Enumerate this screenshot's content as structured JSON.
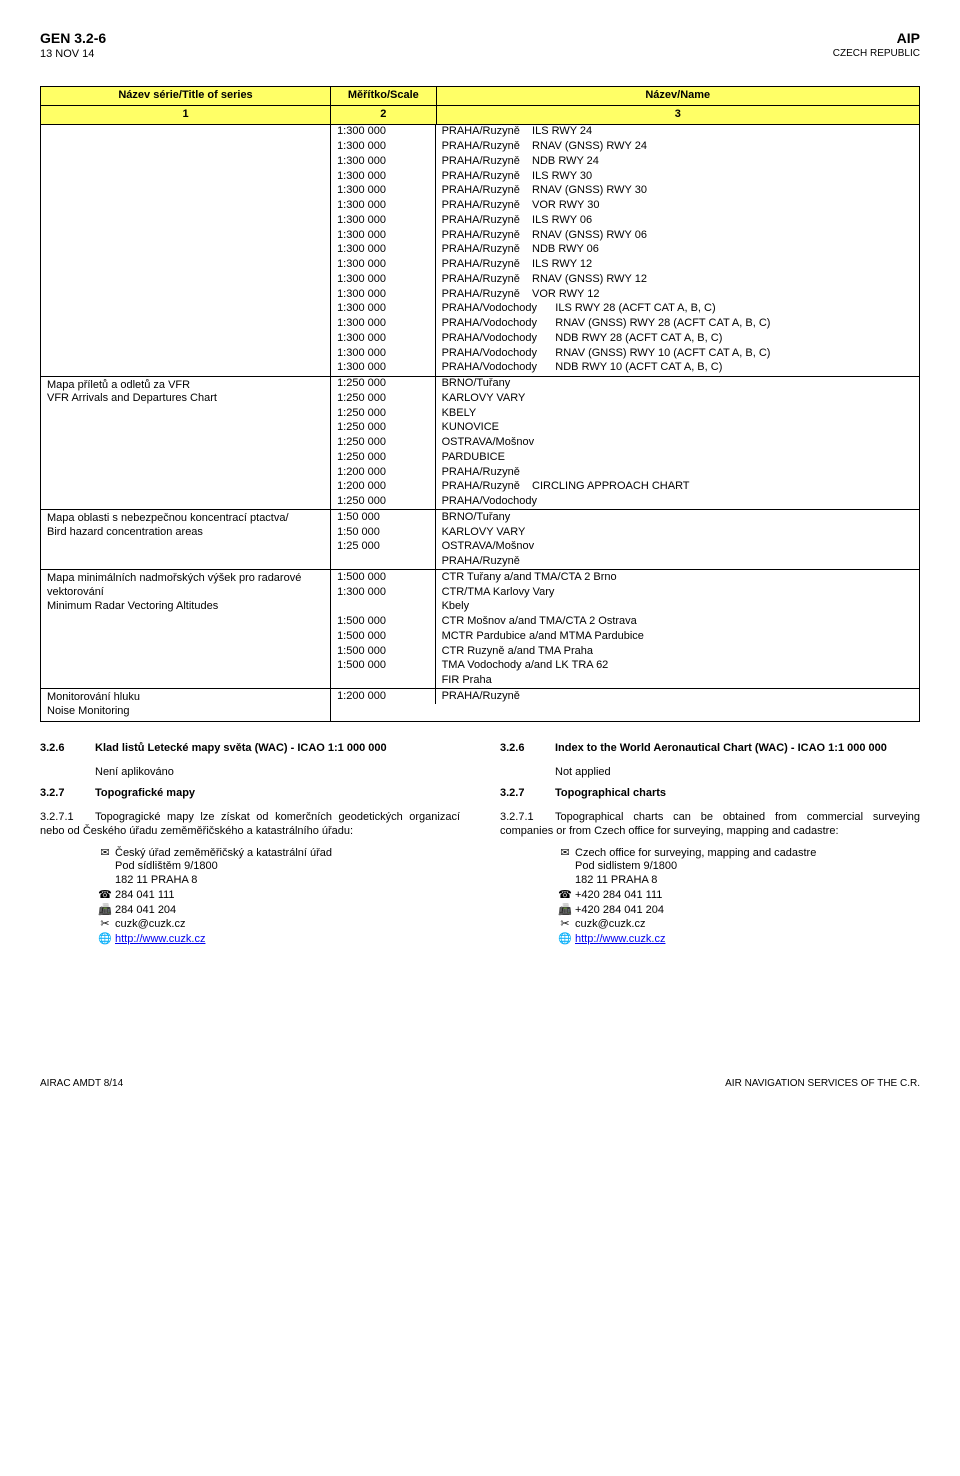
{
  "header": {
    "doc_id": "GEN 3.2-6",
    "doc_date": "13 NOV 14",
    "aip": "AIP",
    "country": "CZECH REPUBLIC"
  },
  "table": {
    "headers": {
      "c1": "Název série/Title of series",
      "c2": "Měřítko/Scale",
      "c3": "Název/Name",
      "n1": "1",
      "n2": "2",
      "n3": "3"
    },
    "header_bg": "#ffff66",
    "groups": [
      {
        "title_lines": [],
        "rows": [
          {
            "scale": "1:300 000",
            "name": "PRAHA/Ruzyně    ILS RWY 24"
          },
          {
            "scale": "1:300 000",
            "name": "PRAHA/Ruzyně    RNAV (GNSS) RWY 24"
          },
          {
            "scale": "1:300 000",
            "name": "PRAHA/Ruzyně    NDB RWY 24"
          },
          {
            "scale": "1:300 000",
            "name": "PRAHA/Ruzyně    ILS RWY 30"
          },
          {
            "scale": "1:300 000",
            "name": "PRAHA/Ruzyně    RNAV (GNSS) RWY 30"
          },
          {
            "scale": "1:300 000",
            "name": "PRAHA/Ruzyně    VOR RWY 30"
          },
          {
            "scale": "1:300 000",
            "name": "PRAHA/Ruzyně    ILS RWY 06"
          },
          {
            "scale": "1:300 000",
            "name": "PRAHA/Ruzyně    RNAV (GNSS) RWY 06"
          },
          {
            "scale": "1:300 000",
            "name": "PRAHA/Ruzyně    NDB RWY 06"
          },
          {
            "scale": "1:300 000",
            "name": "PRAHA/Ruzyně    ILS RWY 12"
          },
          {
            "scale": "1:300 000",
            "name": "PRAHA/Ruzyně    RNAV (GNSS) RWY 12"
          },
          {
            "scale": "1:300 000",
            "name": "PRAHA/Ruzyně    VOR RWY 12"
          },
          {
            "scale": "1:300 000",
            "name": "PRAHA/Vodochody      ILS RWY 28 (ACFT CAT A, B, C)"
          },
          {
            "scale": "1:300 000",
            "name": "PRAHA/Vodochody      RNAV (GNSS) RWY 28 (ACFT CAT A, B, C)"
          },
          {
            "scale": "1:300 000",
            "name": "PRAHA/Vodochody      NDB RWY 28 (ACFT CAT A, B, C)"
          },
          {
            "scale": "1:300 000",
            "name": "PRAHA/Vodochody      RNAV (GNSS) RWY 10 (ACFT CAT A, B, C)"
          },
          {
            "scale": "1:300 000",
            "name": "PRAHA/Vodochody      NDB RWY 10 (ACFT CAT A, B, C)"
          }
        ]
      },
      {
        "title_lines": [
          "Mapa příletů a odletů za VFR",
          "VFR Arrivals and Departures Chart"
        ],
        "rows": [
          {
            "scale": "1:250 000",
            "name": "BRNO/Tuřany"
          },
          {
            "scale": "1:250 000",
            "name": "KARLOVY VARY"
          },
          {
            "scale": "1:250 000",
            "name": "KBELY"
          },
          {
            "scale": "1:250 000",
            "name": "KUNOVICE"
          },
          {
            "scale": "1:250 000",
            "name": "OSTRAVA/Mošnov"
          },
          {
            "scale": "1:250 000",
            "name": "PARDUBICE"
          },
          {
            "scale": "1:200 000",
            "name": "PRAHA/Ruzyně"
          },
          {
            "scale": "1:200 000",
            "name": "PRAHA/Ruzyně    CIRCLING APPROACH CHART"
          },
          {
            "scale": "1:250 000",
            "name": "PRAHA/Vodochody"
          }
        ]
      },
      {
        "title_lines": [
          "Mapa oblasti s nebezpečnou koncentrací ptactva/",
          "Bird hazard concentration areas"
        ],
        "rows": [
          {
            "scale": "1:50 000",
            "name": "BRNO/Tuřany"
          },
          {
            "scale": "1:50 000",
            "name": "KARLOVY VARY"
          },
          {
            "scale": "1:25 000",
            "name": "OSTRAVA/Mošnov"
          },
          {
            "scale": "",
            "name": "PRAHA/Ruzyně"
          }
        ]
      },
      {
        "title_lines": [
          "Mapa minimálních nadmořských výšek pro radarové",
          "vektorování",
          "Minimum Radar Vectoring Altitudes"
        ],
        "rows": [
          {
            "scale": "1:500 000",
            "name": "CTR Tuřany a/and TMA/CTA 2 Brno"
          },
          {
            "scale": "1:300 000",
            "name": "CTR/TMA Karlovy Vary"
          },
          {
            "scale": "",
            "name": "Kbely"
          },
          {
            "scale": "1:500 000",
            "name": "CTR Mošnov a/and TMA/CTA 2 Ostrava"
          },
          {
            "scale": "1:500 000",
            "name": "MCTR Pardubice a/and MTMA Pardubice"
          },
          {
            "scale": "1:500 000",
            "name": "CTR Ruzyně a/and TMA Praha"
          },
          {
            "scale": "1:500 000",
            "name": "TMA Vodochody a/and LK TRA 62"
          },
          {
            "scale": "",
            "name": "FIR Praha"
          }
        ]
      },
      {
        "title_lines": [
          "Monitorování hluku",
          "Noise Monitoring"
        ],
        "rows": [
          {
            "scale": "1:200 000",
            "name": "PRAHA/Ruzyně"
          }
        ]
      }
    ]
  },
  "sections": {
    "left": {
      "s326": {
        "num": "3.2.6",
        "title": "Klad listů Letecké mapy světa (WAC) - ICAO 1:1 000 000",
        "body": "Není aplikováno"
      },
      "s327": {
        "num": "3.2.7",
        "title": "Topografické mapy"
      },
      "s3271": {
        "num": "3.2.7.1",
        "body": "Topogragické mapy lze získat od komerčních geodetických organizací nebo od Českého úřadu zeměměřičského a katastrálního úřadu:"
      },
      "addr": {
        "icon_mail": "✉",
        "lines": [
          "Český úřad zeměměřičský a katastrální úřad",
          "Pod sídlištěm 9/1800",
          "182 11 PRAHA 8"
        ]
      },
      "phone": {
        "icon": "☎",
        "val": "284 041 111"
      },
      "fax": {
        "icon": "📠",
        "val": "284 041 204"
      },
      "email": {
        "icon": "✂",
        "val": "cuzk@cuzk.cz"
      },
      "web": {
        "icon": "🌐",
        "val": "http://www.cuzk.cz"
      }
    },
    "right": {
      "s326": {
        "num": "3.2.6",
        "title": "Index to the World Aeronautical Chart (WAC) - ICAO 1:1 000 000",
        "body": "Not applied"
      },
      "s327": {
        "num": "3.2.7",
        "title": "Topographical charts"
      },
      "s3271": {
        "num": "3.2.7.1",
        "body": "Topographical charts can be obtained from commercial surveying companies or from Czech office for surveying, mapping and cadastre:"
      },
      "addr": {
        "icon_mail": "✉",
        "lines": [
          "Czech office for surveying, mapping and cadastre",
          "Pod sidlistem 9/1800",
          "182 11 PRAHA 8"
        ]
      },
      "phone": {
        "icon": "☎",
        "val": "+420 284 041 111"
      },
      "fax": {
        "icon": "📠",
        "val": "+420 284 041 204"
      },
      "email": {
        "icon": "✂",
        "val": "cuzk@cuzk.cz"
      },
      "web": {
        "icon": "🌐",
        "val": "http://www.cuzk.cz"
      }
    }
  },
  "footer": {
    "left": "AIRAC AMDT 8/14",
    "right": "AIR NAVIGATION SERVICES OF THE C.R."
  }
}
